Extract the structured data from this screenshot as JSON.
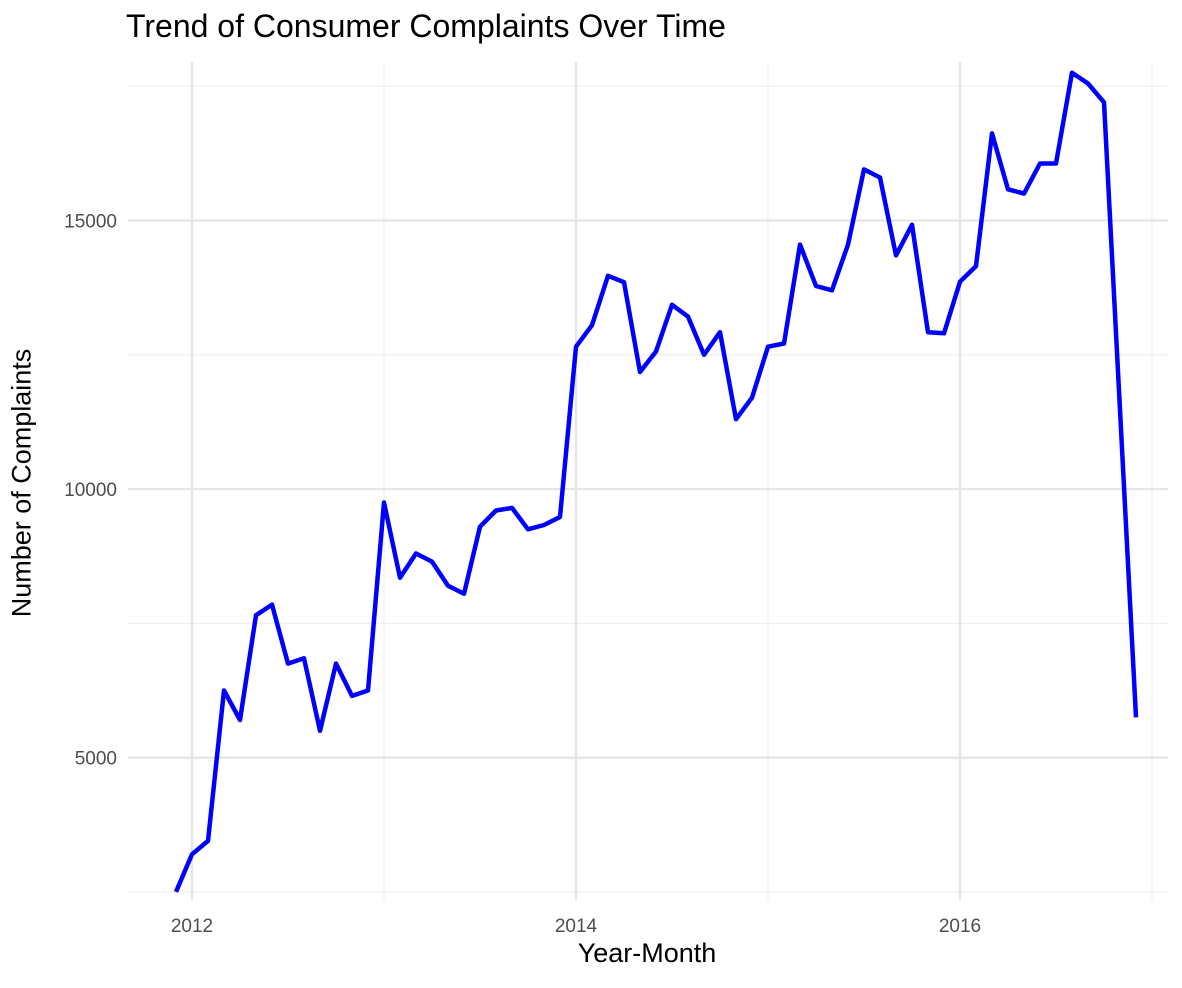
{
  "chart_data": {
    "type": "line",
    "title": "Trend of Consumer Complaints Over Time",
    "xlabel": "Year-Month",
    "ylabel": "Number of Complaints",
    "x_ticks": [
      "2012",
      "2014",
      "2016"
    ],
    "y_ticks": [
      "5000",
      "10000",
      "15000"
    ],
    "x_tick_values": [
      2012,
      2014,
      2016
    ],
    "y_tick_values": [
      5000,
      10000,
      15000
    ],
    "xlim": [
      "2011-09",
      "2017-02"
    ],
    "ylim": [
      2350,
      17950
    ],
    "grid": true,
    "legend": "none",
    "line_color": "#0000ff",
    "series": [
      {
        "x": [
          "2011-12",
          "2012-01",
          "2012-02",
          "2012-03",
          "2012-04",
          "2012-05",
          "2012-06",
          "2012-07",
          "2012-08",
          "2012-09",
          "2012-10",
          "2012-11",
          "2012-12",
          "2013-01",
          "2013-02",
          "2013-03",
          "2013-04",
          "2013-05",
          "2013-06",
          "2013-07",
          "2013-08",
          "2013-09",
          "2013-10",
          "2013-11",
          "2013-12",
          "2014-01",
          "2014-02",
          "2014-03",
          "2014-04",
          "2014-05",
          "2014-06",
          "2014-07",
          "2014-08",
          "2014-09",
          "2014-10",
          "2014-11",
          "2014-12",
          "2015-01",
          "2015-02",
          "2015-03",
          "2015-04",
          "2015-05",
          "2015-06",
          "2015-07",
          "2015-08",
          "2015-09",
          "2015-10",
          "2015-11",
          "2015-12",
          "2016-01",
          "2016-02",
          "2016-03",
          "2016-04",
          "2016-05",
          "2016-06",
          "2016-07",
          "2016-08",
          "2016-09",
          "2016-10",
          "2016-11",
          "2016-12"
        ],
        "values": [
          2500,
          3200,
          3450,
          6250,
          5700,
          7650,
          7850,
          6750,
          6850,
          5500,
          6750,
          6150,
          6250,
          9750,
          8350,
          8800,
          8650,
          8200,
          8050,
          9300,
          9600,
          9650,
          9250,
          9330,
          9480,
          12650,
          13050,
          13970,
          13850,
          12180,
          12560,
          13430,
          13210,
          12500,
          12920,
          11300,
          11700,
          12650,
          12710,
          14550,
          13780,
          13700,
          14550,
          15950,
          15800,
          14350,
          14920,
          12920,
          12900,
          13860,
          14150,
          16620,
          15580,
          15500,
          16060,
          16060,
          17750,
          17550,
          17200,
          null,
          5750
        ]
      }
    ]
  }
}
